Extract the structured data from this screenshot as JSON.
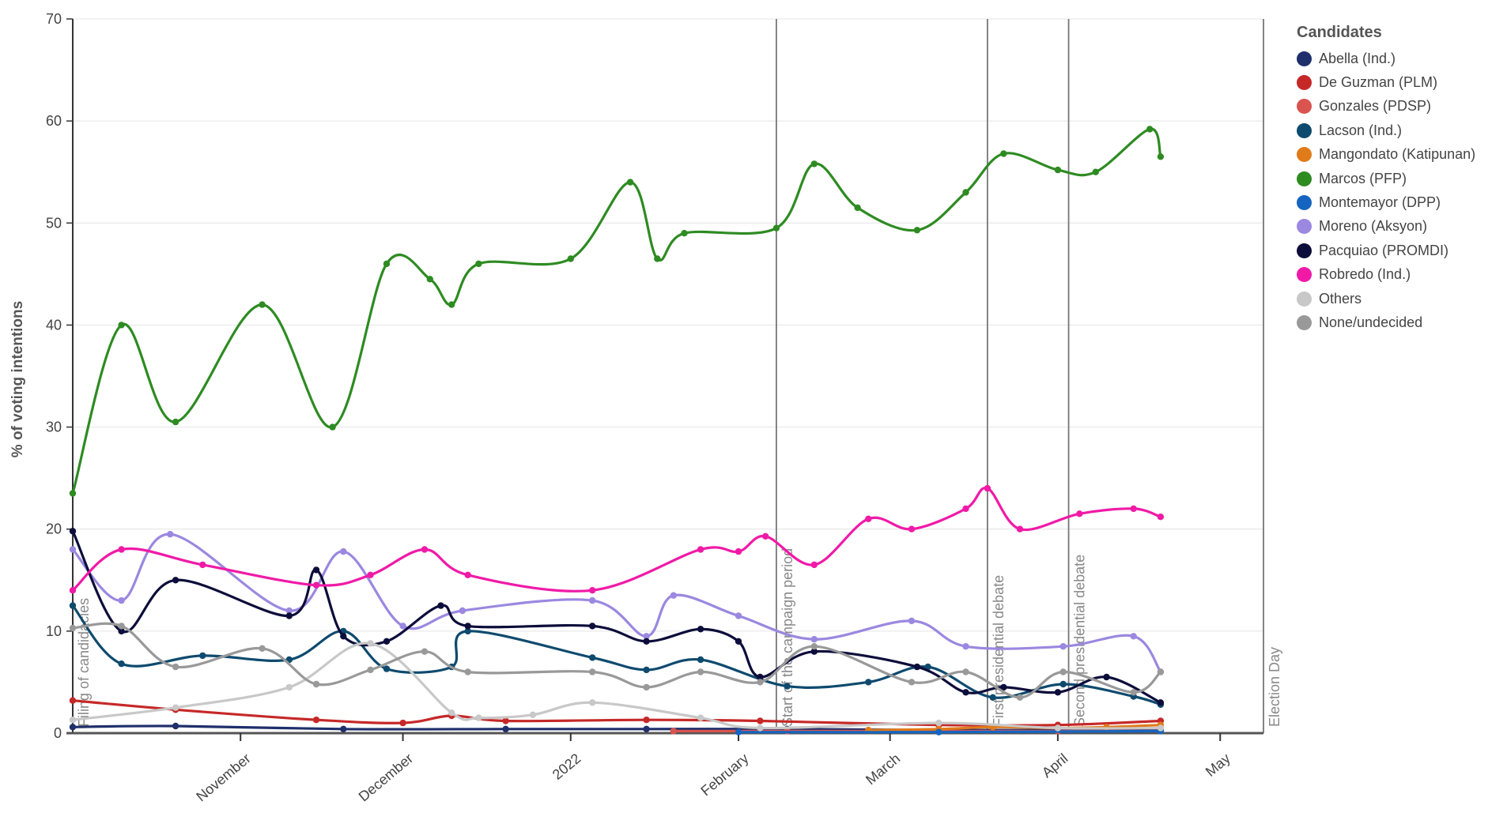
{
  "chart_data": {
    "type": "line",
    "ylabel": "% of voting intentions",
    "ylim": [
      0,
      70
    ],
    "yticks": [
      0,
      10,
      20,
      30,
      40,
      50,
      60,
      70
    ],
    "xlim": [
      "2021-10-01",
      "2022-05-09"
    ],
    "grid": true,
    "xticks": [
      {
        "date": "2021-11-01",
        "label": "November"
      },
      {
        "date": "2021-12-01",
        "label": "December"
      },
      {
        "date": "2022-01-01",
        "label": "2022"
      },
      {
        "date": "2022-02-01",
        "label": "February"
      },
      {
        "date": "2022-03-01",
        "label": "March"
      },
      {
        "date": "2022-04-01",
        "label": "April"
      },
      {
        "date": "2022-05-01",
        "label": "May"
      }
    ],
    "annotations": [
      {
        "date": "2021-10-01",
        "label": "Filing of candidacies",
        "line": false
      },
      {
        "date": "2022-02-08",
        "label": "Start of the campaign period",
        "line": true
      },
      {
        "date": "2022-03-19",
        "label": "First presidential debate",
        "line": true
      },
      {
        "date": "2022-04-03",
        "label": "Second presidential debate",
        "line": true
      },
      {
        "date": "2022-05-09",
        "label": "Election Day",
        "line": true
      }
    ],
    "legend_title": "Candidates",
    "legend_position": "right",
    "series": [
      {
        "name": "Abella (Ind.)",
        "color": "#1f2f6b",
        "x": [
          "2021-10-01",
          "2021-10-20",
          "2021-11-20",
          "2021-12-20",
          "2022-01-15",
          "2022-02-10",
          "2022-03-10",
          "2022-04-01",
          "2022-04-20"
        ],
        "y": [
          0.6,
          0.7,
          0.4,
          0.4,
          0.4,
          0.4,
          0.3,
          0.3,
          0.3
        ]
      },
      {
        "name": "De Guzman (PLM)",
        "color": "#c62828",
        "x": [
          "2021-10-01",
          "2021-10-20",
          "2021-11-15",
          "2021-12-01",
          "2021-12-10",
          "2021-12-20",
          "2022-01-15",
          "2022-02-05",
          "2022-03-10",
          "2022-04-01",
          "2022-04-20"
        ],
        "y": [
          3.2,
          2.3,
          1.3,
          1.0,
          1.7,
          1.2,
          1.3,
          1.2,
          0.8,
          0.8,
          1.2
        ]
      },
      {
        "name": "Gonzales (PDSP)",
        "color": "#d9534f",
        "x": [
          "2022-01-20",
          "2022-02-10",
          "2022-03-10",
          "2022-04-01",
          "2022-04-20"
        ],
        "y": [
          0.2,
          0.2,
          0.2,
          0.2,
          0.2
        ]
      },
      {
        "name": "Lacson (Ind.)",
        "color": "#0e4a6e",
        "x": [
          "2021-10-01",
          "2021-10-10",
          "2021-10-25",
          "2021-11-10",
          "2021-11-20",
          "2021-11-28",
          "2021-12-10",
          "2021-12-13",
          "2022-01-05",
          "2022-01-15",
          "2022-01-25",
          "2022-02-10",
          "2022-02-25",
          "2022-03-08",
          "2022-03-20",
          "2022-04-02",
          "2022-04-15",
          "2022-04-20"
        ],
        "y": [
          12.5,
          6.8,
          7.6,
          7.2,
          10.0,
          6.3,
          6.5,
          10.0,
          7.4,
          6.2,
          7.2,
          4.6,
          5.0,
          6.5,
          3.5,
          4.8,
          3.6,
          2.8
        ]
      },
      {
        "name": "Mangondato (Katipunan)",
        "color": "#e07b1a",
        "x": [
          "2022-02-25",
          "2022-03-10",
          "2022-03-20",
          "2022-04-01",
          "2022-04-10",
          "2022-04-20"
        ],
        "y": [
          0.3,
          0.4,
          0.6,
          0.5,
          0.6,
          0.8
        ]
      },
      {
        "name": "Marcos (PFP)",
        "color": "#2e8b22",
        "x": [
          "2021-10-01",
          "2021-10-10",
          "2021-10-20",
          "2021-11-05",
          "2021-11-18",
          "2021-11-28",
          "2021-12-06",
          "2021-12-10",
          "2021-12-15",
          "2022-01-01",
          "2022-01-12",
          "2022-01-17",
          "2022-01-22",
          "2022-02-08",
          "2022-02-15",
          "2022-02-23",
          "2022-03-06",
          "2022-03-15",
          "2022-03-22",
          "2022-04-01",
          "2022-04-08",
          "2022-04-18",
          "2022-04-20"
        ],
        "y": [
          23.5,
          40.0,
          30.5,
          42.0,
          30.0,
          46.0,
          44.5,
          42.0,
          46.0,
          46.5,
          54.0,
          46.5,
          49.0,
          49.5,
          55.8,
          51.5,
          49.3,
          53.0,
          56.8,
          55.2,
          55.0,
          59.2,
          56.5
        ]
      },
      {
        "name": "Montemayor (DPP)",
        "color": "#1565c0",
        "x": [
          "2022-02-01",
          "2022-03-10",
          "2022-04-20"
        ],
        "y": [
          0.1,
          0.1,
          0.2
        ]
      },
      {
        "name": "Moreno (Aksyon)",
        "color": "#9b88e0",
        "x": [
          "2021-10-01",
          "2021-10-10",
          "2021-10-19",
          "2021-11-10",
          "2021-11-20",
          "2021-12-01",
          "2021-12-12",
          "2022-01-05",
          "2022-01-15",
          "2022-01-20",
          "2022-02-01",
          "2022-02-15",
          "2022-03-05",
          "2022-03-15",
          "2022-04-02",
          "2022-04-15",
          "2022-04-20"
        ],
        "y": [
          18.0,
          13.0,
          19.5,
          12.0,
          17.8,
          10.5,
          12.0,
          13.0,
          9.5,
          13.5,
          11.5,
          9.2,
          11.0,
          8.5,
          8.5,
          9.5,
          6.0
        ]
      },
      {
        "name": "Pacquiao (PROMDI)",
        "color": "#0d0d3b",
        "x": [
          "2021-10-01",
          "2021-10-10",
          "2021-10-20",
          "2021-11-10",
          "2021-11-15",
          "2021-11-20",
          "2021-11-28",
          "2021-12-08",
          "2021-12-13",
          "2022-01-05",
          "2022-01-15",
          "2022-01-25",
          "2022-02-01",
          "2022-02-05",
          "2022-02-15",
          "2022-03-06",
          "2022-03-15",
          "2022-03-22",
          "2022-04-01",
          "2022-04-10",
          "2022-04-20"
        ],
        "y": [
          19.8,
          10.0,
          15.0,
          11.5,
          16.0,
          9.5,
          9.0,
          12.5,
          10.5,
          10.5,
          9.0,
          10.2,
          9.0,
          5.5,
          8.0,
          6.5,
          4.0,
          4.5,
          4.0,
          5.5,
          3.0
        ]
      },
      {
        "name": "Robredo (Ind.)",
        "color": "#f01aa7",
        "x": [
          "2021-10-01",
          "2021-10-10",
          "2021-10-25",
          "2021-11-15",
          "2021-11-25",
          "2021-12-05",
          "2021-12-13",
          "2022-01-05",
          "2022-01-25",
          "2022-02-01",
          "2022-02-06",
          "2022-02-15",
          "2022-02-25",
          "2022-03-05",
          "2022-03-15",
          "2022-03-19",
          "2022-03-25",
          "2022-04-05",
          "2022-04-15",
          "2022-04-20"
        ],
        "y": [
          14.0,
          18.0,
          16.5,
          14.5,
          15.5,
          18.0,
          15.5,
          14.0,
          18.0,
          17.8,
          19.3,
          16.5,
          21.0,
          20.0,
          22.0,
          24.0,
          20.0,
          21.5,
          22.0,
          21.2
        ]
      },
      {
        "name": "Others",
        "color": "#c8c8c8",
        "x": [
          "2021-10-01",
          "2021-10-20",
          "2021-11-10",
          "2021-11-25",
          "2021-12-10",
          "2021-12-15",
          "2021-12-25",
          "2022-01-05",
          "2022-01-25",
          "2022-02-05",
          "2022-03-10",
          "2022-04-01",
          "2022-04-20"
        ],
        "y": [
          1.3,
          2.5,
          4.5,
          8.8,
          2.0,
          1.5,
          1.8,
          3.0,
          1.5,
          0.5,
          1.0,
          0.5,
          0.5
        ]
      },
      {
        "name": "None/undecided",
        "color": "#999999",
        "x": [
          "2021-10-01",
          "2021-10-10",
          "2021-10-20",
          "2021-11-05",
          "2021-11-15",
          "2021-11-25",
          "2021-12-05",
          "2021-12-13",
          "2022-01-05",
          "2022-01-15",
          "2022-01-25",
          "2022-02-05",
          "2022-02-15",
          "2022-03-05",
          "2022-03-15",
          "2022-03-25",
          "2022-04-02",
          "2022-04-15",
          "2022-04-20"
        ],
        "y": [
          10.3,
          10.5,
          6.5,
          8.3,
          4.8,
          6.2,
          8.0,
          6.0,
          6.0,
          4.5,
          6.0,
          5.0,
          8.5,
          5.0,
          6.0,
          3.5,
          6.0,
          4.0,
          6.0
        ]
      }
    ]
  }
}
